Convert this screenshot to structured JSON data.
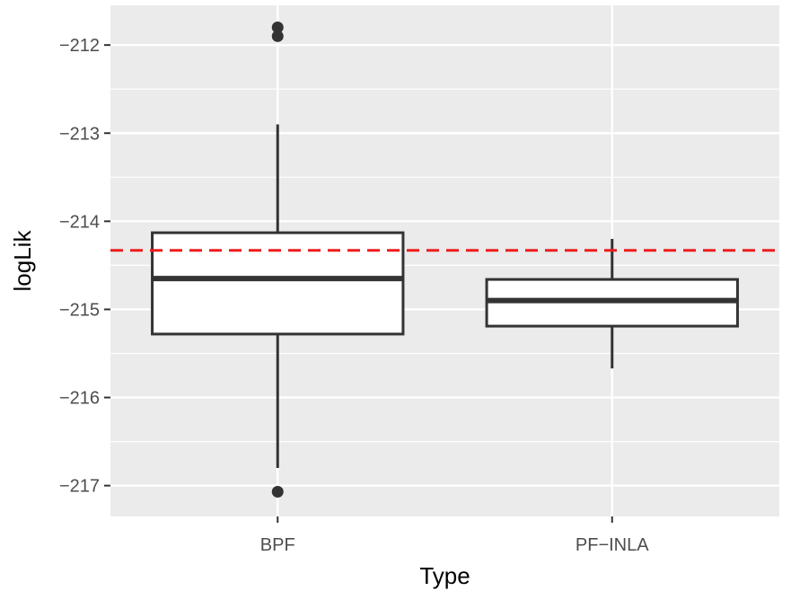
{
  "chart_data": {
    "type": "boxplot",
    "title": "",
    "xlabel": "Type",
    "ylabel": "logLik",
    "categories": [
      "BPF",
      "PF−INLA"
    ],
    "ylim": [
      -217.35,
      -211.55
    ],
    "yticks": [
      -212,
      -213,
      -214,
      -215,
      -216,
      -217
    ],
    "ytick_labels": [
      "−212",
      "−213",
      "−214",
      "−215",
      "−216",
      "−217"
    ],
    "boxes": [
      {
        "category": "BPF",
        "whisker_low": -216.8,
        "q1": -215.28,
        "median": -214.65,
        "q3": -214.13,
        "whisker_high": -212.9,
        "outliers": [
          -211.8,
          -211.9,
          -217.07
        ]
      },
      {
        "category": "PF−INLA",
        "whisker_low": -215.67,
        "q1": -215.19,
        "median": -214.9,
        "q3": -214.66,
        "whisker_high": -214.2,
        "outliers": []
      }
    ],
    "reference_line": {
      "value": -214.33,
      "style": "dashed",
      "color": "#ee1c1c"
    },
    "grid": true,
    "legend": "none",
    "colors": {
      "panel_background": "#ebebeb",
      "grid_line": "#ffffff",
      "box_fill": "#ffffff",
      "box_stroke": "#333333",
      "tick_text": "#4d4d4d",
      "title_text": "#000000"
    }
  }
}
